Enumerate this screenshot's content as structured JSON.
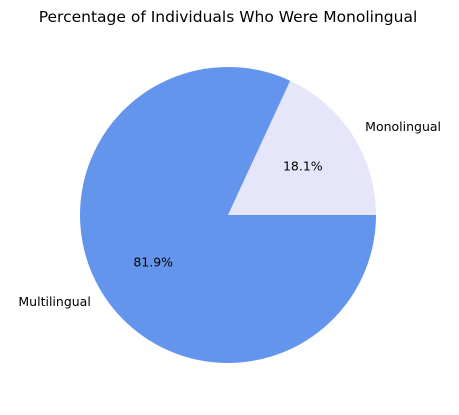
{
  "chart_data": {
    "type": "pie",
    "title": "Percentage of Individuals Who Were Monolingual",
    "slices": [
      {
        "label": "Monolingual",
        "value": 18.1,
        "value_label": "18.1%",
        "color": "#e6e6fa"
      },
      {
        "label": "Multilingual",
        "value": 81.9,
        "value_label": "81.9%",
        "color": "#6495ed"
      }
    ],
    "start_angle_deg": 0,
    "direction": "counterclockwise"
  }
}
